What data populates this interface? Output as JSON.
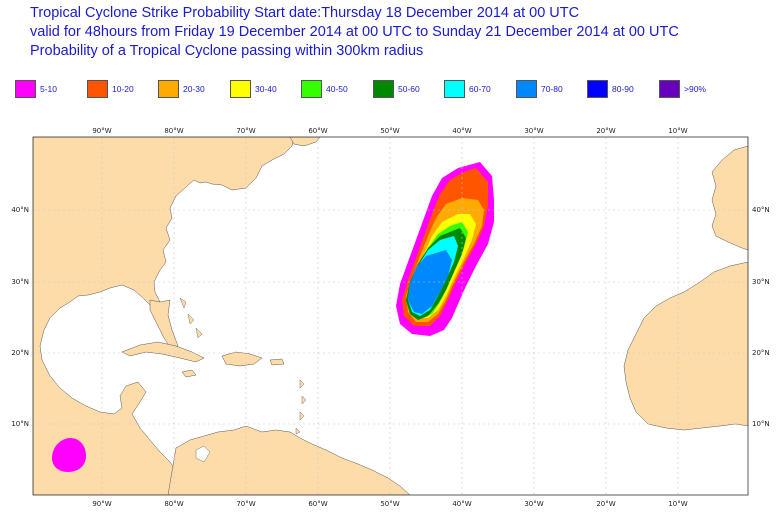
{
  "title": {
    "line1": "Tropical Cyclone Strike Probability Start date:Thursday 18 December 2014 at 00 UTC",
    "line2": "valid for 48hours from Friday 19 December 2014 at 00 UTC to  Sunday 21 December 2014 at 00 UTC",
    "line3": "Probability of a Tropical Cyclone passing within 300km radius"
  },
  "legend": [
    {
      "label": "5-10",
      "color": "#ff00ff"
    },
    {
      "label": "10-20",
      "color": "#ff5500"
    },
    {
      "label": "20-30",
      "color": "#ffaa00"
    },
    {
      "label": "30-40",
      "color": "#ffff00"
    },
    {
      "label": "40-50",
      "color": "#33ff00"
    },
    {
      "label": "50-60",
      "color": "#008800"
    },
    {
      "label": "60-70",
      "color": "#00ffff"
    },
    {
      "label": "70-80",
      "color": "#0088ff"
    },
    {
      "label": "80-90",
      "color": "#0000ff"
    },
    {
      "label": ">90%",
      "color": "#6600bb"
    }
  ],
  "map": {
    "land_color": "#fddcaa",
    "ocean_color": "#ffffff",
    "lon_labels": [
      "90°W",
      "80°W",
      "70°W",
      "60°W",
      "50°W",
      "40°W",
      "30°W",
      "20°W",
      "10°W"
    ],
    "lat_labels": [
      "40°N",
      "30°N",
      "20°N",
      "10°N"
    ]
  }
}
